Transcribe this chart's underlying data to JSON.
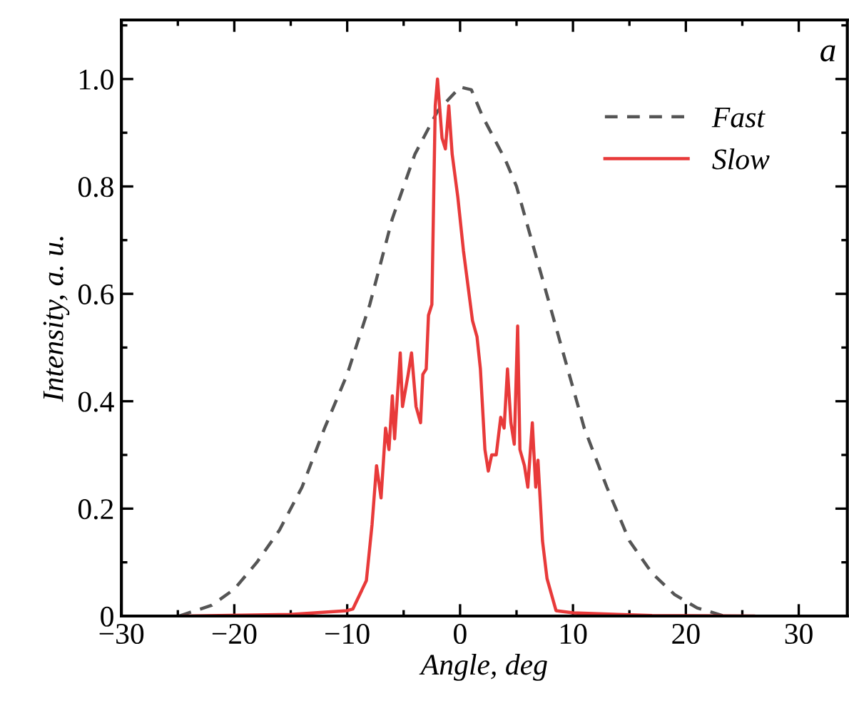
{
  "chart_data": {
    "type": "line",
    "xlabel": "Angle, deg",
    "ylabel": "Intensity, a. u.",
    "annotations": [
      "a"
    ],
    "xlim": [
      -30,
      34.3
    ],
    "ylim": [
      0,
      1.11
    ],
    "xticks": [
      {
        "value": -30,
        "label": "−30"
      },
      {
        "value": -20,
        "label": "−20"
      },
      {
        "value": -10,
        "label": "−10"
      },
      0,
      10,
      20,
      30
    ],
    "yticks": [
      0,
      0.2,
      0.4,
      0.6,
      0.8,
      {
        "value": 1,
        "label": "1.0"
      }
    ],
    "legend": "top right",
    "grid": false,
    "series": [
      {
        "name": "Fast",
        "color": "#555555",
        "line_style": "dashed",
        "x": [
          -24.9,
          -22,
          -20,
          -18,
          -16,
          -14,
          -12,
          -10,
          -8,
          -6,
          -4,
          -2,
          0,
          1,
          2,
          4,
          5,
          7,
          9,
          11,
          13,
          15,
          17,
          19,
          21,
          23.4
        ],
        "values": [
          0,
          0.02,
          0.05,
          0.1,
          0.16,
          0.24,
          0.35,
          0.45,
          0.58,
          0.74,
          0.86,
          0.94,
          0.985,
          0.98,
          0.93,
          0.85,
          0.8,
          0.65,
          0.5,
          0.35,
          0.24,
          0.14,
          0.08,
          0.04,
          0.015,
          0
        ]
      },
      {
        "name": "Slow",
        "color": "#e83a3a",
        "line_style": "solid",
        "x": [
          -24.5,
          -15,
          -10,
          -9.5,
          -8.3,
          -7.8,
          -7.4,
          -7.0,
          -6.6,
          -6.3,
          -6.0,
          -5.8,
          -5.3,
          -5.1,
          -4.6,
          -4.3,
          -3.9,
          -3.5,
          -3.3,
          -3.0,
          -2.8,
          -2.5,
          -2.2,
          -2.0,
          -1.6,
          -1.3,
          -1.0,
          -0.7,
          -0.2,
          0.3,
          1.1,
          1.5,
          1.8,
          2.2,
          2.5,
          2.8,
          3.2,
          3.6,
          3.9,
          4.2,
          4.5,
          4.8,
          5.1,
          5.3,
          5.7,
          6.0,
          6.4,
          6.7,
          6.9,
          7.3,
          7.7,
          8.5,
          10,
          14,
          17,
          26
        ],
        "values": [
          0,
          0.003,
          0.01,
          0.013,
          0.066,
          0.17,
          0.28,
          0.22,
          0.35,
          0.31,
          0.41,
          0.33,
          0.49,
          0.39,
          0.45,
          0.49,
          0.39,
          0.36,
          0.45,
          0.46,
          0.56,
          0.58,
          0.95,
          1.0,
          0.89,
          0.87,
          0.95,
          0.86,
          0.78,
          0.68,
          0.55,
          0.52,
          0.46,
          0.31,
          0.27,
          0.3,
          0.3,
          0.37,
          0.35,
          0.46,
          0.36,
          0.32,
          0.54,
          0.31,
          0.28,
          0.24,
          0.36,
          0.24,
          0.29,
          0.14,
          0.07,
          0.01,
          0.006,
          0.003,
          0.001,
          0
        ]
      }
    ]
  }
}
